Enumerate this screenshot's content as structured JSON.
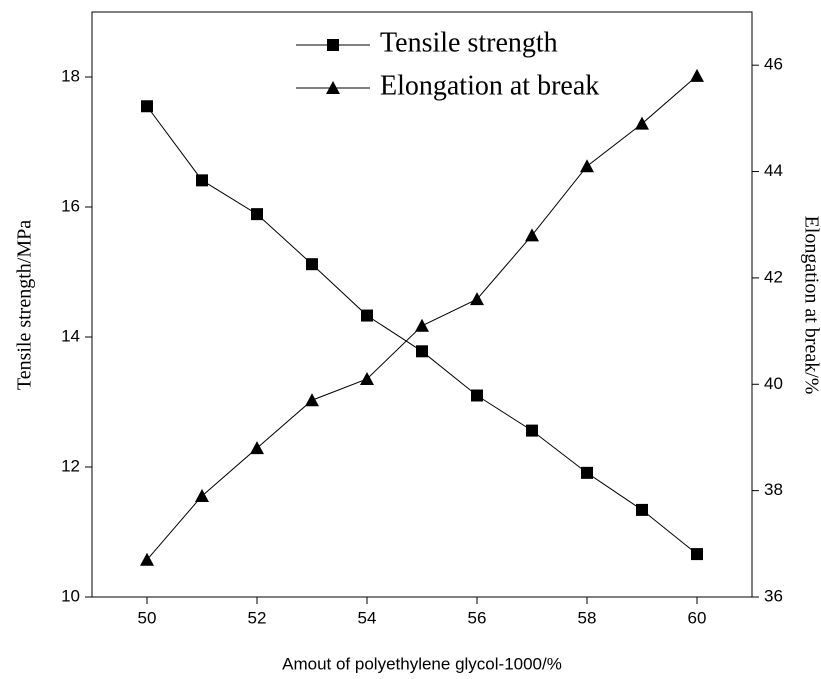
{
  "chart_data": {
    "type": "line",
    "x_label": "Amout of polyethylene glycol-1000/%",
    "y_label": "Tensile strength/MPa",
    "y2_label": "Elongation at break/%",
    "x": [
      50,
      51,
      52,
      53,
      54,
      55,
      56,
      57,
      58,
      59,
      60
    ],
    "series": [
      {
        "name": "Tensile strength",
        "color": "#000000",
        "marker": "square",
        "values": [
          17.55,
          16.41,
          15.89,
          15.12,
          14.33,
          13.78,
          13.1,
          12.56,
          11.91,
          11.34,
          10.66
        ]
      },
      {
        "name": "Elongation at break",
        "color": "#000000",
        "marker": "triangle",
        "axis": "y2",
        "values": [
          36.7,
          37.9,
          38.8,
          39.7,
          40.1,
          41.1,
          41.6,
          42.8,
          44.1,
          44.9,
          45.8
        ]
      }
    ],
    "xlim": [
      49,
      61
    ],
    "xticks": [
      50,
      52,
      54,
      56,
      58,
      60
    ],
    "ylim": [
      10,
      19
    ],
    "yticks": [
      10,
      12,
      14,
      16,
      18
    ],
    "y2lim": [
      36,
      47
    ],
    "y2ticks": [
      36,
      38,
      40,
      42,
      44,
      46
    ],
    "legend": "upper center",
    "grid": false
  }
}
